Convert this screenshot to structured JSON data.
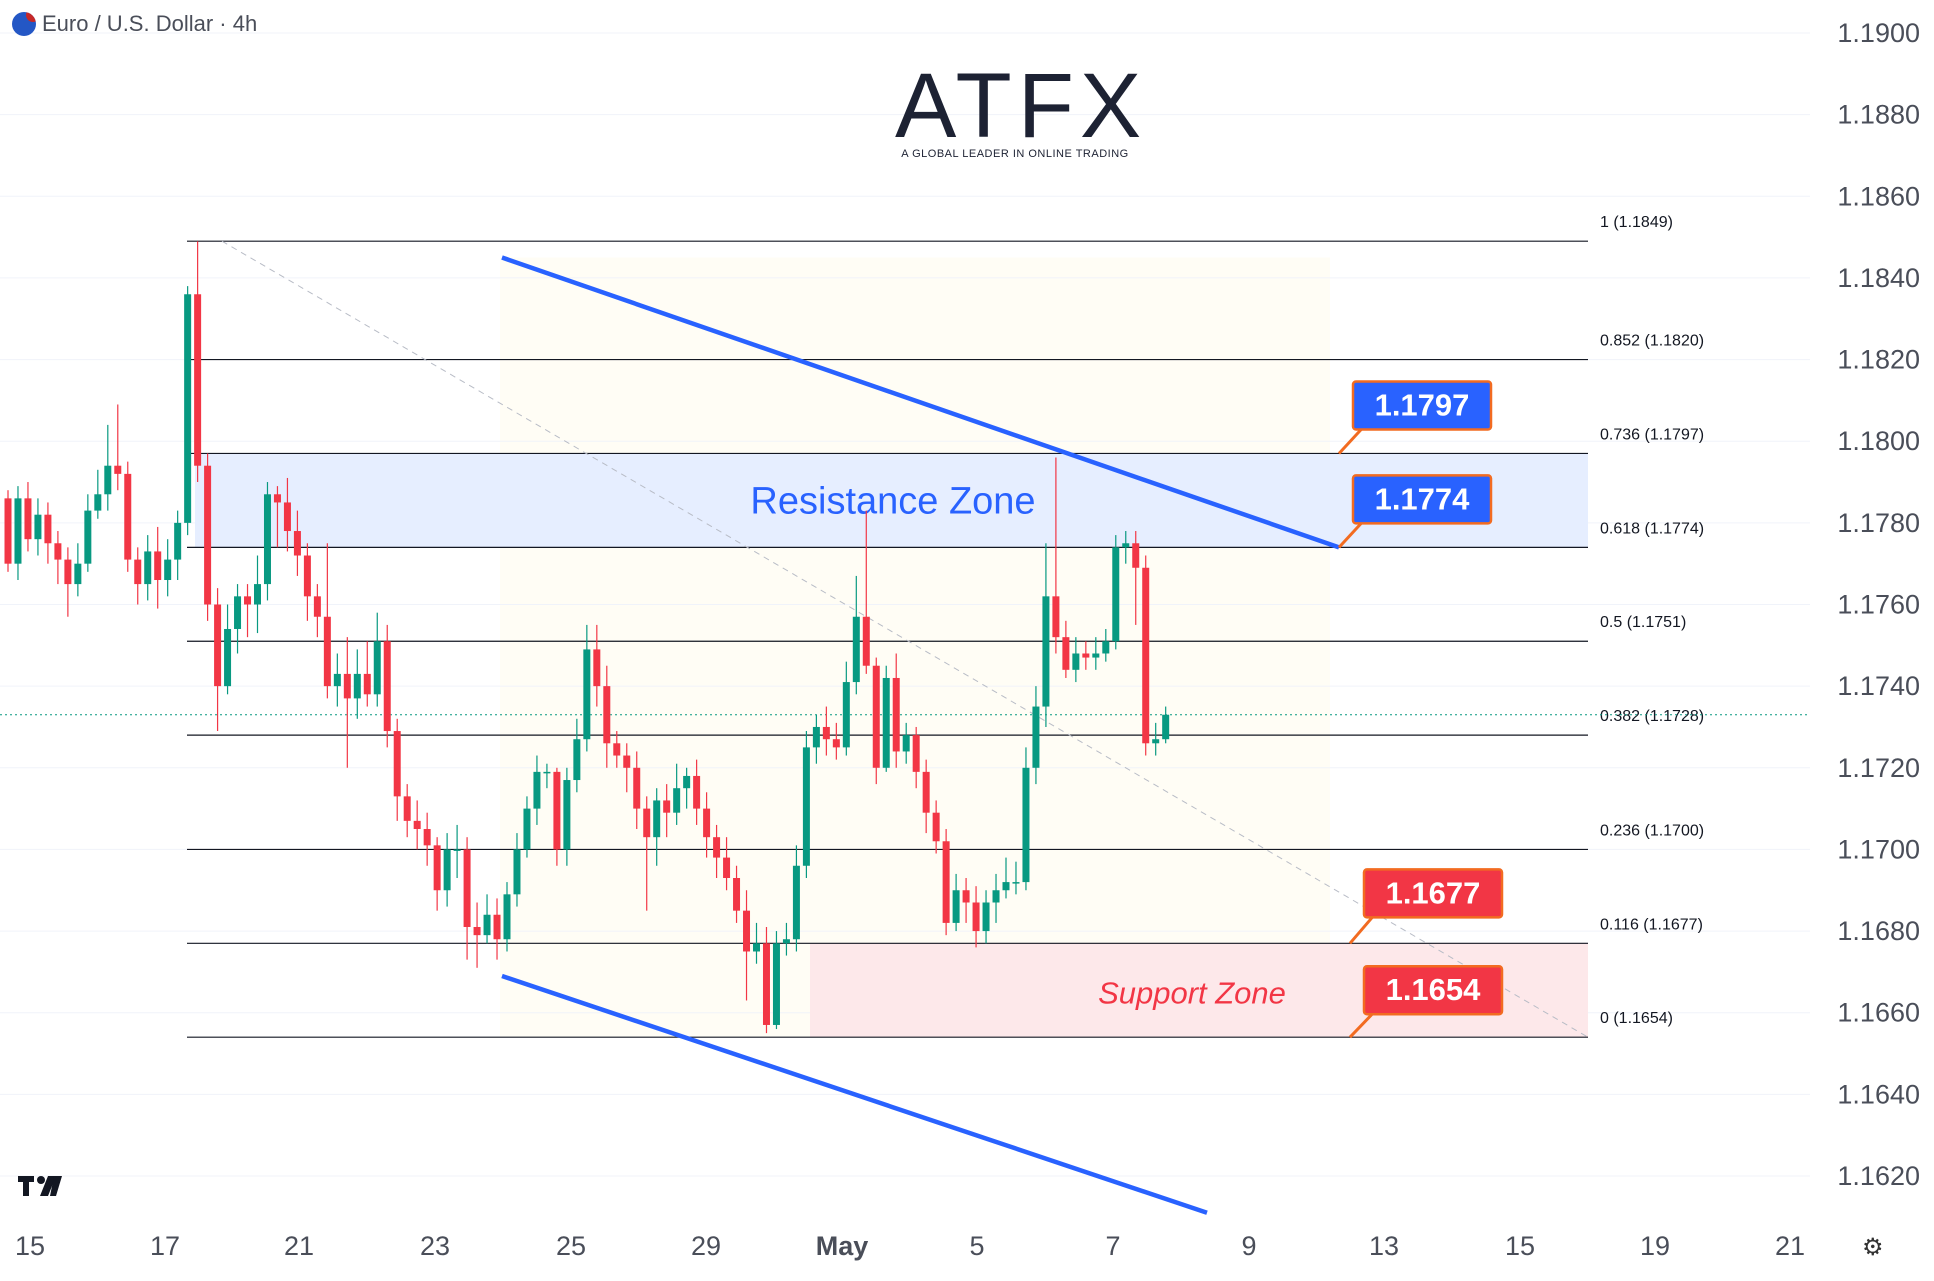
{
  "header": {
    "symbol_title": "Euro / U.S. Dollar · 4h",
    "flag_icon": "eur-usd-flag-icon"
  },
  "logo": {
    "text": "ATFX",
    "tagline": "A GLOBAL LEADER IN ONLINE TRADING",
    "accent": "#f26b21"
  },
  "chart_data": {
    "type": "candlestick",
    "timeframe": "4h",
    "x_ticks": [
      "15",
      "17",
      "21",
      "23",
      "25",
      "29",
      "May",
      "5",
      "7",
      "9",
      "13",
      "15",
      "19",
      "21"
    ],
    "y_ticks": [
      "1.1900",
      "1.1880",
      "1.1860",
      "1.1840",
      "1.1820",
      "1.1800",
      "1.1780",
      "1.1760",
      "1.1740",
      "1.1720",
      "1.1700",
      "1.1680",
      "1.1660",
      "1.1640",
      "1.1620"
    ],
    "ylim": [
      1.1608,
      1.1906
    ],
    "colors": {
      "up": "#089981",
      "down": "#f23645",
      "channel": "#2962ff",
      "level": "#131722"
    },
    "candles": [
      [
        1.1786,
        1.177,
        1.1788,
        1.1768
      ],
      [
        1.177,
        1.1786,
        1.1789,
        1.1766
      ],
      [
        1.1786,
        1.1776,
        1.179,
        1.1773
      ],
      [
        1.1776,
        1.1782,
        1.1786,
        1.1772
      ],
      [
        1.1782,
        1.1775,
        1.1785,
        1.177
      ],
      [
        1.1775,
        1.1771,
        1.1778,
        1.1765
      ],
      [
        1.1771,
        1.1765,
        1.1774,
        1.1757
      ],
      [
        1.1765,
        1.177,
        1.1775,
        1.1762
      ],
      [
        1.177,
        1.1783,
        1.1787,
        1.1768
      ],
      [
        1.1783,
        1.1787,
        1.1793,
        1.1781
      ],
      [
        1.1787,
        1.1794,
        1.1804,
        1.1783
      ],
      [
        1.1794,
        1.1792,
        1.1809,
        1.1788
      ],
      [
        1.1792,
        1.1771,
        1.1795,
        1.1768
      ],
      [
        1.1771,
        1.1765,
        1.1774,
        1.176
      ],
      [
        1.1765,
        1.1773,
        1.1777,
        1.1761
      ],
      [
        1.1773,
        1.1766,
        1.1779,
        1.1759
      ],
      [
        1.1766,
        1.1771,
        1.1776,
        1.1762
      ],
      [
        1.1771,
        1.178,
        1.1783,
        1.1766
      ],
      [
        1.178,
        1.1836,
        1.1838,
        1.1777
      ],
      [
        1.1836,
        1.1794,
        1.1849,
        1.179
      ],
      [
        1.1794,
        1.176,
        1.1797,
        1.1756
      ],
      [
        1.176,
        1.174,
        1.1764,
        1.1729
      ],
      [
        1.174,
        1.1754,
        1.176,
        1.1738
      ],
      [
        1.1754,
        1.1762,
        1.1765,
        1.1748
      ],
      [
        1.1762,
        1.176,
        1.1765,
        1.1752
      ],
      [
        1.176,
        1.1765,
        1.1772,
        1.1753
      ],
      [
        1.1765,
        1.1787,
        1.179,
        1.1761
      ],
      [
        1.1787,
        1.1785,
        1.1789,
        1.1774
      ],
      [
        1.1785,
        1.1778,
        1.1791,
        1.1773
      ],
      [
        1.1778,
        1.1772,
        1.1783,
        1.1767
      ],
      [
        1.1772,
        1.1762,
        1.1775,
        1.1756
      ],
      [
        1.1762,
        1.1757,
        1.1765,
        1.1752
      ],
      [
        1.1757,
        1.174,
        1.1775,
        1.1737
      ],
      [
        1.174,
        1.1743,
        1.1748,
        1.1735
      ],
      [
        1.1743,
        1.1737,
        1.1752,
        1.172
      ],
      [
        1.1737,
        1.1743,
        1.1749,
        1.1732
      ],
      [
        1.1743,
        1.1738,
        1.1751,
        1.1735
      ],
      [
        1.1738,
        1.1751,
        1.1758,
        1.1735
      ],
      [
        1.1751,
        1.1729,
        1.1755,
        1.1725
      ],
      [
        1.1729,
        1.1713,
        1.1732,
        1.1707
      ],
      [
        1.1713,
        1.1707,
        1.1716,
        1.1703
      ],
      [
        1.1707,
        1.1705,
        1.1712,
        1.17
      ],
      [
        1.1705,
        1.1701,
        1.1709,
        1.1696
      ],
      [
        1.1701,
        1.169,
        1.1703,
        1.1685
      ],
      [
        1.169,
        1.17,
        1.1704,
        1.1686
      ],
      [
        1.17,
        1.17,
        1.1706,
        1.1693
      ],
      [
        1.17,
        1.1681,
        1.1703,
        1.1673
      ],
      [
        1.1681,
        1.1679,
        1.1687,
        1.1671
      ],
      [
        1.1679,
        1.1684,
        1.1689,
        1.1677
      ],
      [
        1.1684,
        1.1678,
        1.1688,
        1.1673
      ],
      [
        1.1678,
        1.1689,
        1.1692,
        1.1675
      ],
      [
        1.1689,
        1.17,
        1.1704,
        1.1686
      ],
      [
        1.17,
        1.171,
        1.1713,
        1.1698
      ],
      [
        1.171,
        1.1719,
        1.1723,
        1.1706
      ],
      [
        1.1719,
        1.1719,
        1.1721,
        1.1715
      ],
      [
        1.1719,
        1.17,
        1.172,
        1.1696
      ],
      [
        1.17,
        1.1717,
        1.172,
        1.1696
      ],
      [
        1.1717,
        1.1727,
        1.1732,
        1.1714
      ],
      [
        1.1727,
        1.1749,
        1.1755,
        1.1724
      ],
      [
        1.1749,
        1.174,
        1.1755,
        1.1735
      ],
      [
        1.174,
        1.1726,
        1.1745,
        1.172
      ],
      [
        1.1726,
        1.1723,
        1.1729,
        1.172
      ],
      [
        1.1723,
        1.172,
        1.1726,
        1.1714
      ],
      [
        1.172,
        1.171,
        1.1724,
        1.1705
      ],
      [
        1.171,
        1.1703,
        1.1713,
        1.1685
      ],
      [
        1.1703,
        1.1712,
        1.1715,
        1.1696
      ],
      [
        1.1712,
        1.1709,
        1.1716,
        1.1703
      ],
      [
        1.1709,
        1.1715,
        1.1721,
        1.1706
      ],
      [
        1.1715,
        1.1718,
        1.172,
        1.171
      ],
      [
        1.1718,
        1.171,
        1.1722,
        1.1706
      ],
      [
        1.171,
        1.1703,
        1.1714,
        1.1698
      ],
      [
        1.1703,
        1.1698,
        1.1706,
        1.1693
      ],
      [
        1.1698,
        1.1693,
        1.1703,
        1.169
      ],
      [
        1.1693,
        1.1685,
        1.1696,
        1.1682
      ],
      [
        1.1685,
        1.1675,
        1.169,
        1.1663
      ],
      [
        1.1675,
        1.1677,
        1.1682,
        1.1672
      ],
      [
        1.1677,
        1.1657,
        1.1681,
        1.1655
      ],
      [
        1.1657,
        1.1677,
        1.168,
        1.1656
      ],
      [
        1.1677,
        1.1678,
        1.1682,
        1.1674
      ],
      [
        1.1678,
        1.1696,
        1.1701,
        1.1675
      ],
      [
        1.1696,
        1.1725,
        1.1729,
        1.1693
      ],
      [
        1.1725,
        1.173,
        1.1733,
        1.1721
      ],
      [
        1.173,
        1.1727,
        1.1735,
        1.1723
      ],
      [
        1.1727,
        1.1725,
        1.1731,
        1.1722
      ],
      [
        1.1725,
        1.1741,
        1.1746,
        1.1723
      ],
      [
        1.1741,
        1.1757,
        1.1767,
        1.1738
      ],
      [
        1.1757,
        1.1745,
        1.1783,
        1.1743
      ],
      [
        1.1745,
        1.172,
        1.1747,
        1.1716
      ],
      [
        1.172,
        1.1742,
        1.1745,
        1.1719
      ],
      [
        1.1742,
        1.1724,
        1.1748,
        1.172
      ],
      [
        1.1724,
        1.1728,
        1.1731,
        1.1721
      ],
      [
        1.1728,
        1.1719,
        1.173,
        1.1715
      ],
      [
        1.1719,
        1.1709,
        1.1722,
        1.1704
      ],
      [
        1.1709,
        1.1702,
        1.1712,
        1.1699
      ],
      [
        1.1702,
        1.1682,
        1.1705,
        1.1679
      ],
      [
        1.1682,
        1.169,
        1.1694,
        1.168
      ],
      [
        1.169,
        1.1687,
        1.1693,
        1.1682
      ],
      [
        1.1687,
        1.168,
        1.1691,
        1.1676
      ],
      [
        1.168,
        1.1687,
        1.169,
        1.1677
      ],
      [
        1.1687,
        1.169,
        1.1694,
        1.1682
      ],
      [
        1.169,
        1.1692,
        1.1698,
        1.1688
      ],
      [
        1.1692,
        1.1692,
        1.1697,
        1.1689
      ],
      [
        1.1692,
        1.172,
        1.1725,
        1.169
      ],
      [
        1.172,
        1.1735,
        1.174,
        1.1716
      ],
      [
        1.1735,
        1.1762,
        1.1775,
        1.173
      ],
      [
        1.1762,
        1.1752,
        1.1796,
        1.1748
      ],
      [
        1.1752,
        1.1744,
        1.1756,
        1.1742
      ],
      [
        1.1744,
        1.1748,
        1.1752,
        1.1741
      ],
      [
        1.1748,
        1.1747,
        1.1751,
        1.1744
      ],
      [
        1.1747,
        1.1748,
        1.1752,
        1.1744
      ],
      [
        1.1748,
        1.1751,
        1.1754,
        1.1746
      ],
      [
        1.1751,
        1.1774,
        1.1777,
        1.1749
      ],
      [
        1.1774,
        1.1775,
        1.1778,
        1.177
      ],
      [
        1.1775,
        1.1769,
        1.1778,
        1.1755
      ],
      [
        1.1769,
        1.1726,
        1.1772,
        1.1723
      ],
      [
        1.1726,
        1.1727,
        1.1731,
        1.1723
      ],
      [
        1.1727,
        1.1733,
        1.1735,
        1.1726
      ]
    ],
    "fib_levels": [
      {
        "ratio": "1",
        "price": 1.1849,
        "label": "1 (1.1849)"
      },
      {
        "ratio": "0.852",
        "price": 1.182,
        "label": "0.852 (1.1820)"
      },
      {
        "ratio": "0.736",
        "price": 1.1797,
        "label": "0.736 (1.1797)"
      },
      {
        "ratio": "0.618",
        "price": 1.1774,
        "label": "0.618 (1.1774)"
      },
      {
        "ratio": "0.5",
        "price": 1.1751,
        "label": "0.5 (1.1751)"
      },
      {
        "ratio": "0.382",
        "price": 1.1728,
        "label": "0.382 (1.1728)"
      },
      {
        "ratio": "0.236",
        "price": 1.17,
        "label": "0.236 (1.1700)"
      },
      {
        "ratio": "0.116",
        "price": 1.1677,
        "label": "0.116 (1.1677)"
      },
      {
        "ratio": "0",
        "price": 1.1654,
        "label": "0 (1.1654)"
      }
    ],
    "current_price": 1.1733,
    "zones": [
      {
        "label": "Resistance Zone",
        "low": 1.1774,
        "high": 1.1797,
        "fill": "#e6eeff",
        "text_color": "#2962ff"
      },
      {
        "label": "Support Zone",
        "low": 1.1654,
        "high": 1.1677,
        "fill": "#fde8ea",
        "text_color": "#f23645"
      }
    ],
    "price_labels": [
      {
        "text": "1.1797",
        "price": 1.1797,
        "color": "#2962ff"
      },
      {
        "text": "1.1774",
        "price": 1.1774,
        "color": "#2962ff"
      },
      {
        "text": "1.1677",
        "price": 1.1677,
        "color": "#f23645"
      },
      {
        "text": "1.1654",
        "price": 1.1654,
        "color": "#f23645"
      }
    ],
    "channel": {
      "upper": [
        [
          1.1845,
          "start"
        ],
        [
          1.1774,
          "end"
        ]
      ],
      "lower": [
        [
          1.1669,
          "start"
        ],
        [
          1.1611,
          "end"
        ]
      ]
    }
  },
  "footer": {
    "tv_logo_icon": "tradingview-logo-icon",
    "settings_icon": "gear-icon"
  }
}
